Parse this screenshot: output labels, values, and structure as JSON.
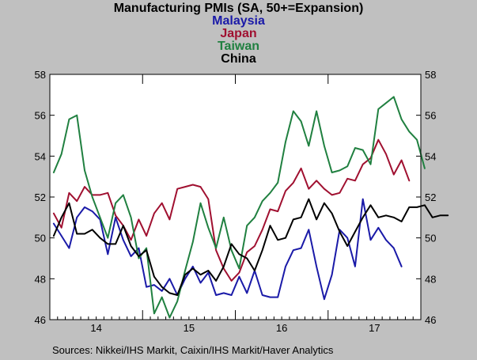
{
  "chart_data": {
    "type": "line",
    "title": "Manufacturing PMIs (SA, 50+=Expansion)",
    "legend_placement": "top-center",
    "xlabel": "",
    "ylabel": "",
    "ylim": [
      46,
      58
    ],
    "yticks": [
      46,
      48,
      50,
      52,
      54,
      56,
      58
    ],
    "yaxis_both_sides": true,
    "grid": false,
    "x_start": "2014-01",
    "x_end": "2017-12",
    "x_tick_labels": [
      "14",
      "15",
      "16",
      "17"
    ],
    "series": [
      {
        "name": "Malaysia",
        "color": "#1a1aa8",
        "values": [
          50.7,
          50.1,
          49.5,
          51.0,
          51.5,
          51.3,
          50.9,
          49.2,
          51.0,
          49.9,
          49.1,
          49.5,
          47.6,
          47.7,
          47.4,
          48.0,
          47.2,
          48.0,
          48.6,
          47.8,
          48.3,
          47.2,
          47.3,
          47.2,
          48.1,
          47.3,
          48.4,
          47.2,
          47.1,
          47.1,
          48.6,
          49.4,
          49.5,
          50.4,
          48.6,
          47.0,
          48.2,
          50.4,
          50.0,
          48.6,
          51.9,
          49.9,
          50.5,
          49.9,
          49.5,
          48.6
        ]
      },
      {
        "name": "Japan",
        "color": "#a01030",
        "values": [
          51.2,
          50.5,
          52.2,
          51.8,
          52.5,
          52.1,
          52.1,
          52.2,
          51.1,
          50.6,
          49.9,
          50.9,
          50.1,
          51.2,
          51.7,
          50.9,
          52.4,
          52.5,
          52.6,
          52.5,
          51.9,
          49.4,
          48.5,
          47.9,
          48.3,
          49.3,
          49.6,
          50.4,
          51.4,
          51.3,
          52.3,
          52.7,
          53.4,
          52.4,
          52.8,
          52.4,
          52.1,
          52.2,
          52.9,
          52.8,
          53.6,
          53.9,
          54.8,
          54.1,
          53.1,
          53.8,
          52.8
        ]
      },
      {
        "name": "Taiwan",
        "color": "#208040",
        "values": [
          53.2,
          54.1,
          55.8,
          56.0,
          53.3,
          52.0,
          51.0,
          50.0,
          51.7,
          52.1,
          51.0,
          49.0,
          49.5,
          46.3,
          47.1,
          46.1,
          46.9,
          48.4,
          49.8,
          51.7,
          50.5,
          49.5,
          51.0,
          49.4,
          48.5,
          50.6,
          51.0,
          51.8,
          52.2,
          52.7,
          54.7,
          56.2,
          55.7,
          54.5,
          56.2,
          54.5,
          53.2,
          53.3,
          53.5,
          54.4,
          54.3,
          53.6,
          56.3,
          56.6,
          56.9,
          55.8,
          55.2,
          54.8,
          53.4
        ]
      },
      {
        "name": "China",
        "color": "#000000",
        "values": [
          50.1,
          51.0,
          51.7,
          50.2,
          50.2,
          50.4,
          50.0,
          49.7,
          49.7,
          50.6,
          49.6,
          49.1,
          49.4,
          48.1,
          47.6,
          47.3,
          47.2,
          48.2,
          48.5,
          48.2,
          48.4,
          47.9,
          48.6,
          49.7,
          49.2,
          49.0,
          48.4,
          49.4,
          50.6,
          49.9,
          50.0,
          50.9,
          51.0,
          51.9,
          50.9,
          51.7,
          51.2,
          50.3,
          49.6,
          50.3,
          51.0,
          51.6,
          51.0,
          51.1,
          51.0,
          50.8,
          51.5,
          51.5,
          51.6,
          51.0,
          51.1,
          51.1
        ]
      }
    ]
  },
  "footer": {
    "source": "Sources:  Nikkei/IHS Markit, Caixin/IHS Markit/Haver Analytics"
  }
}
